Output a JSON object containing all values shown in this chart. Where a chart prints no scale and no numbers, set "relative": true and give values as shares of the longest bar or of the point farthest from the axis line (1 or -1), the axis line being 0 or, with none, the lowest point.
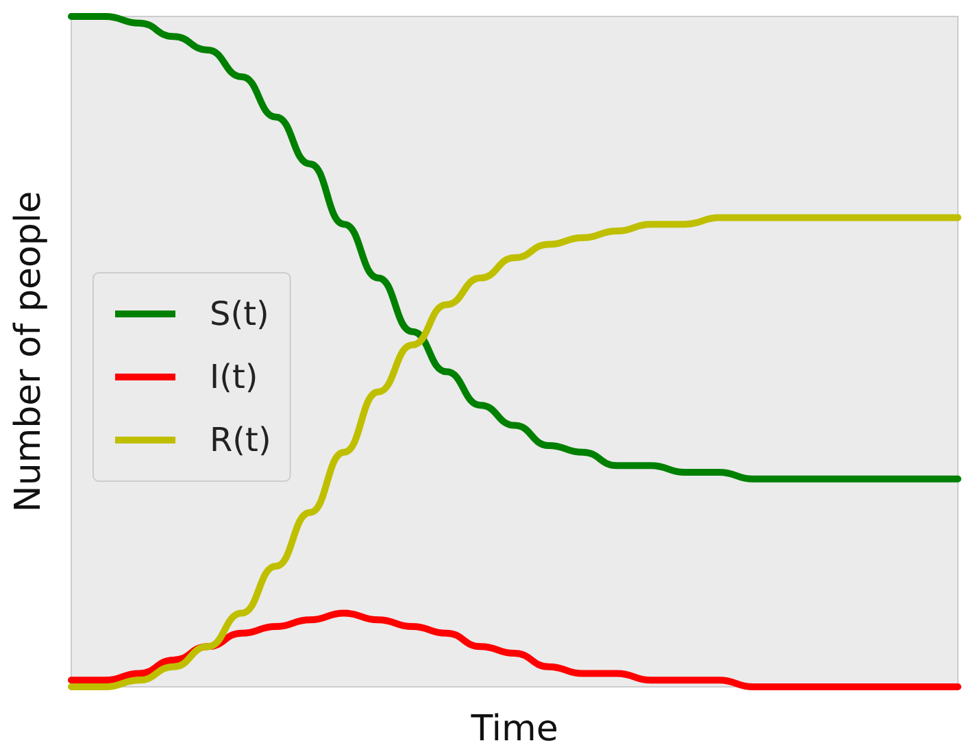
{
  "chart_data": {
    "type": "line",
    "relative": true,
    "xlabel": "Time",
    "ylabel": "Number of people",
    "categories": [
      null,
      null,
      null,
      null,
      null,
      null,
      null,
      null,
      null,
      null,
      null,
      null,
      null,
      null,
      null,
      null,
      null,
      null,
      null,
      null,
      null,
      null,
      null,
      null,
      null,
      null,
      null
    ],
    "series": [
      {
        "name": "S(t)",
        "color": "#008000",
        "values": [
          1.0,
          1.0,
          0.99,
          0.97,
          0.95,
          0.91,
          0.85,
          0.78,
          0.69,
          0.61,
          0.53,
          0.47,
          0.42,
          0.39,
          0.36,
          0.35,
          0.33,
          0.33,
          0.32,
          0.32,
          0.31,
          0.31,
          0.31,
          0.31,
          0.31,
          0.31,
          0.31
        ]
      },
      {
        "name": "I(t)",
        "color": "#ff0000",
        "values": [
          0.01,
          0.01,
          0.02,
          0.04,
          0.06,
          0.08,
          0.09,
          0.1,
          0.11,
          0.1,
          0.09,
          0.08,
          0.06,
          0.05,
          0.03,
          0.02,
          0.02,
          0.01,
          0.01,
          0.01,
          0.0,
          0.0,
          0.0,
          0.0,
          0.0,
          0.0,
          0.0
        ]
      },
      {
        "name": "R(t)",
        "color": "#bfbf00",
        "values": [
          0.0,
          0.0,
          0.01,
          0.03,
          0.06,
          0.11,
          0.18,
          0.26,
          0.35,
          0.44,
          0.51,
          0.57,
          0.61,
          0.64,
          0.66,
          0.67,
          0.68,
          0.69,
          0.69,
          0.7,
          0.7,
          0.7,
          0.7,
          0.7,
          0.7,
          0.7,
          0.7
        ]
      }
    ],
    "legend": "left",
    "grid": false,
    "marker": "none",
    "line_style": "solid"
  }
}
